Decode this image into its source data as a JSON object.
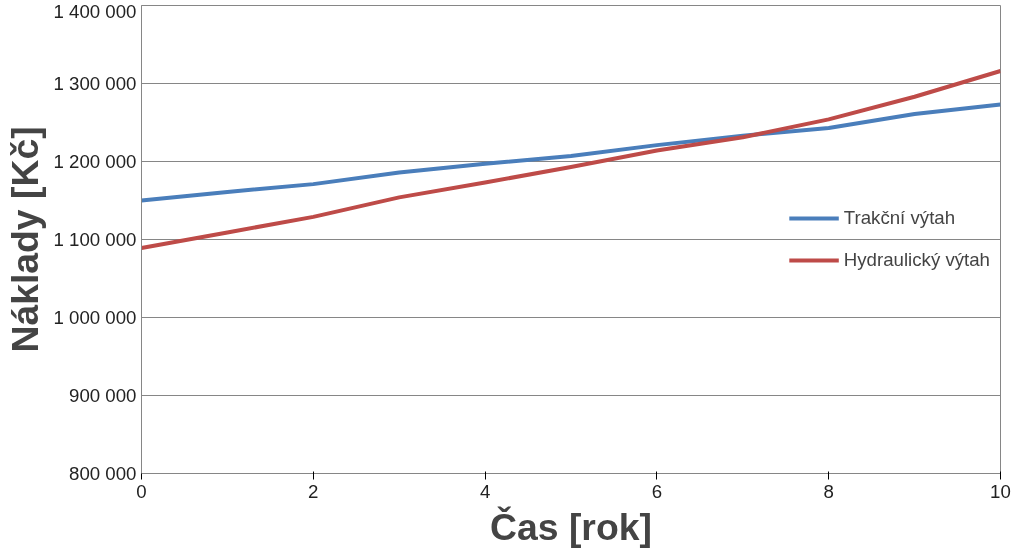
{
  "chart_data": {
    "type": "line",
    "xlabel": "Čas [rok]",
    "ylabel": "Náklady [Kč]",
    "x": [
      0,
      1,
      2,
      3,
      4,
      5,
      6,
      7,
      8,
      9,
      10
    ],
    "series": [
      {
        "name": "Trakční výtah",
        "color": "#4a7ebb",
        "values": [
          1150000,
          1161000,
          1171000,
          1186000,
          1197000,
          1207000,
          1221000,
          1233000,
          1243000,
          1261000,
          1273000
        ]
      },
      {
        "name": "Hydraulický výtah",
        "color": "#be4b48",
        "values": [
          1089000,
          1109000,
          1129000,
          1154000,
          1173000,
          1193000,
          1214000,
          1231000,
          1254000,
          1283000,
          1316000
        ]
      }
    ],
    "xlim": [
      0,
      10
    ],
    "xticks": [
      0,
      2,
      4,
      6,
      8,
      10
    ],
    "ylim": [
      800000,
      1400000
    ],
    "yticks": [
      {
        "value": 800000,
        "label": "800 000"
      },
      {
        "value": 900000,
        "label": "900 000"
      },
      {
        "value": 1000000,
        "label": "1 000 000"
      },
      {
        "value": 1100000,
        "label": "1 100 000"
      },
      {
        "value": 1200000,
        "label": "1 200 000"
      },
      {
        "value": 1300000,
        "label": "1 300 000"
      },
      {
        "value": 1400000,
        "label": "1 400 000"
      }
    ],
    "grid": "y",
    "legend": "right",
    "marker": "none",
    "line_style": "solid"
  }
}
